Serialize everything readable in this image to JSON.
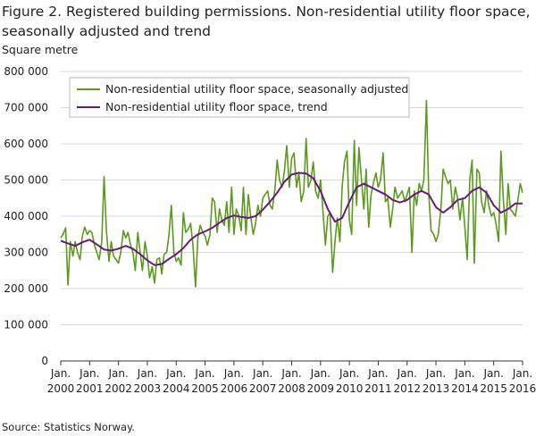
{
  "title": "Figure 2. Registered building permissions. Non-residential utility floor space, seasonally adjusted and trend",
  "source": "Source: Statistics Norway.",
  "colors": {
    "seasonally_adjusted": "#5a9a1c",
    "trend": "#6a1a7a",
    "grid": "#d9d9d9",
    "axis": "#333333"
  },
  "chart_data": {
    "type": "line",
    "ylabel": "Square metre",
    "ylim": [
      0,
      800000
    ],
    "yticks": [
      0,
      100000,
      200000,
      300000,
      400000,
      500000,
      600000,
      700000,
      800000
    ],
    "ytick_labels": [
      "0",
      "100 000",
      "200 000",
      "300 000",
      "400 000",
      "500 000",
      "600 000",
      "700 000",
      "800 000"
    ],
    "xlim": [
      2000,
      2016
    ],
    "xticks": [
      {
        "value": 2000,
        "line1": "Jan.",
        "line2": "2000"
      },
      {
        "value": 2001,
        "line1": "Jan.",
        "line2": "2001"
      },
      {
        "value": 2002,
        "line1": "Jan.",
        "line2": "2002"
      },
      {
        "value": 2003,
        "line1": "Jan.",
        "line2": "2003"
      },
      {
        "value": 2004,
        "line1": "Jan.",
        "line2": "2004"
      },
      {
        "value": 2005,
        "line1": "Jan.",
        "line2": "2005"
      },
      {
        "value": 2006,
        "line1": "Jan.",
        "line2": "2006"
      },
      {
        "value": 2007,
        "line1": "Jan.",
        "line2": "2007"
      },
      {
        "value": 2008,
        "line1": "Jan.",
        "line2": "2008"
      },
      {
        "value": 2009,
        "line1": "Jan.",
        "line2": "2009"
      },
      {
        "value": 2010,
        "line1": "Jan.",
        "line2": "2010"
      },
      {
        "value": 2011,
        "line1": "Jan.",
        "line2": "2011"
      },
      {
        "value": 2012,
        "line1": "Jan.",
        "line2": "2012"
      },
      {
        "value": 2013,
        "line1": "Jan.",
        "line2": "2013"
      },
      {
        "value": 2014,
        "line1": "Jan.",
        "line2": "2014"
      },
      {
        "value": 2015,
        "line1": "Jan.",
        "line2": "2015"
      },
      {
        "value": 2016,
        "line1": "Jan.",
        "line2": "2016"
      }
    ],
    "grid": "horizontal",
    "legend_position": "top-left",
    "series": [
      {
        "name": "Non-residential utility floor space, seasonally adjusted",
        "color": "#5a9a1c",
        "points": [
          [
            2000.0,
            340000
          ],
          [
            2000.08,
            350000
          ],
          [
            2000.17,
            368000
          ],
          [
            2000.25,
            210000
          ],
          [
            2000.33,
            330000
          ],
          [
            2000.42,
            290000
          ],
          [
            2000.5,
            330000
          ],
          [
            2000.58,
            300000
          ],
          [
            2000.67,
            280000
          ],
          [
            2000.75,
            345000
          ],
          [
            2000.83,
            370000
          ],
          [
            2000.92,
            350000
          ],
          [
            2001.0,
            360000
          ],
          [
            2001.08,
            355000
          ],
          [
            2001.17,
            320000
          ],
          [
            2001.25,
            300000
          ],
          [
            2001.33,
            280000
          ],
          [
            2001.42,
            330000
          ],
          [
            2001.5,
            510000
          ],
          [
            2001.58,
            360000
          ],
          [
            2001.67,
            275000
          ],
          [
            2001.75,
            330000
          ],
          [
            2001.83,
            290000
          ],
          [
            2001.92,
            280000
          ],
          [
            2002.0,
            270000
          ],
          [
            2002.08,
            300000
          ],
          [
            2002.17,
            360000
          ],
          [
            2002.25,
            340000
          ],
          [
            2002.33,
            355000
          ],
          [
            2002.42,
            320000
          ],
          [
            2002.5,
            300000
          ],
          [
            2002.58,
            250000
          ],
          [
            2002.67,
            355000
          ],
          [
            2002.75,
            300000
          ],
          [
            2002.83,
            250000
          ],
          [
            2002.92,
            330000
          ],
          [
            2003.0,
            290000
          ],
          [
            2003.08,
            230000
          ],
          [
            2003.17,
            260000
          ],
          [
            2003.25,
            215000
          ],
          [
            2003.33,
            280000
          ],
          [
            2003.42,
            285000
          ],
          [
            2003.5,
            240000
          ],
          [
            2003.58,
            295000
          ],
          [
            2003.67,
            300000
          ],
          [
            2003.75,
            350000
          ],
          [
            2003.83,
            430000
          ],
          [
            2003.92,
            300000
          ],
          [
            2004.0,
            275000
          ],
          [
            2004.08,
            285000
          ],
          [
            2004.17,
            265000
          ],
          [
            2004.25,
            410000
          ],
          [
            2004.33,
            355000
          ],
          [
            2004.42,
            365000
          ],
          [
            2004.5,
            380000
          ],
          [
            2004.58,
            320000
          ],
          [
            2004.67,
            205000
          ],
          [
            2004.75,
            340000
          ],
          [
            2004.83,
            375000
          ],
          [
            2004.92,
            355000
          ],
          [
            2005.0,
            345000
          ],
          [
            2005.08,
            320000
          ],
          [
            2005.17,
            350000
          ],
          [
            2005.25,
            450000
          ],
          [
            2005.33,
            440000
          ],
          [
            2005.42,
            355000
          ],
          [
            2005.5,
            420000
          ],
          [
            2005.58,
            390000
          ],
          [
            2005.67,
            375000
          ],
          [
            2005.75,
            440000
          ],
          [
            2005.83,
            355000
          ],
          [
            2005.92,
            480000
          ],
          [
            2006.0,
            350000
          ],
          [
            2006.08,
            420000
          ],
          [
            2006.17,
            400000
          ],
          [
            2006.25,
            360000
          ],
          [
            2006.33,
            480000
          ],
          [
            2006.42,
            350000
          ],
          [
            2006.5,
            460000
          ],
          [
            2006.58,
            400000
          ],
          [
            2006.67,
            350000
          ],
          [
            2006.75,
            380000
          ],
          [
            2006.83,
            430000
          ],
          [
            2006.92,
            400000
          ],
          [
            2007.0,
            450000
          ],
          [
            2007.08,
            460000
          ],
          [
            2007.17,
            470000
          ],
          [
            2007.25,
            430000
          ],
          [
            2007.33,
            420000
          ],
          [
            2007.42,
            475000
          ],
          [
            2007.5,
            555000
          ],
          [
            2007.58,
            500000
          ],
          [
            2007.67,
            480000
          ],
          [
            2007.75,
            525000
          ],
          [
            2007.83,
            595000
          ],
          [
            2007.92,
            480000
          ],
          [
            2008.0,
            560000
          ],
          [
            2008.08,
            575000
          ],
          [
            2008.17,
            480000
          ],
          [
            2008.25,
            520000
          ],
          [
            2008.33,
            440000
          ],
          [
            2008.42,
            470000
          ],
          [
            2008.5,
            615000
          ],
          [
            2008.58,
            480000
          ],
          [
            2008.67,
            500000
          ],
          [
            2008.75,
            550000
          ],
          [
            2008.83,
            470000
          ],
          [
            2008.92,
            450000
          ],
          [
            2009.0,
            500000
          ],
          [
            2009.08,
            420000
          ],
          [
            2009.17,
            320000
          ],
          [
            2009.25,
            400000
          ],
          [
            2009.33,
            410000
          ],
          [
            2009.42,
            245000
          ],
          [
            2009.5,
            330000
          ],
          [
            2009.58,
            395000
          ],
          [
            2009.67,
            330000
          ],
          [
            2009.75,
            480000
          ],
          [
            2009.83,
            550000
          ],
          [
            2009.92,
            580000
          ],
          [
            2010.0,
            390000
          ],
          [
            2010.08,
            350000
          ],
          [
            2010.17,
            610000
          ],
          [
            2010.25,
            430000
          ],
          [
            2010.33,
            590000
          ],
          [
            2010.42,
            500000
          ],
          [
            2010.5,
            420000
          ],
          [
            2010.58,
            530000
          ],
          [
            2010.67,
            370000
          ],
          [
            2010.75,
            460000
          ],
          [
            2010.83,
            490000
          ],
          [
            2010.92,
            520000
          ],
          [
            2011.0,
            480000
          ],
          [
            2011.08,
            500000
          ],
          [
            2011.17,
            575000
          ],
          [
            2011.25,
            440000
          ],
          [
            2011.33,
            450000
          ],
          [
            2011.42,
            370000
          ],
          [
            2011.5,
            420000
          ],
          [
            2011.58,
            480000
          ],
          [
            2011.67,
            450000
          ],
          [
            2011.75,
            460000
          ],
          [
            2011.83,
            470000
          ],
          [
            2011.92,
            440000
          ],
          [
            2012.0,
            460000
          ],
          [
            2012.08,
            480000
          ],
          [
            2012.17,
            300000
          ],
          [
            2012.25,
            470000
          ],
          [
            2012.33,
            430000
          ],
          [
            2012.42,
            490000
          ],
          [
            2012.5,
            470000
          ],
          [
            2012.58,
            500000
          ],
          [
            2012.67,
            720000
          ],
          [
            2012.75,
            460000
          ],
          [
            2012.83,
            360000
          ],
          [
            2012.92,
            350000
          ],
          [
            2013.0,
            330000
          ],
          [
            2013.08,
            350000
          ],
          [
            2013.17,
            420000
          ],
          [
            2013.25,
            530000
          ],
          [
            2013.33,
            510000
          ],
          [
            2013.42,
            490000
          ],
          [
            2013.5,
            500000
          ],
          [
            2013.58,
            420000
          ],
          [
            2013.67,
            480000
          ],
          [
            2013.75,
            450000
          ],
          [
            2013.83,
            390000
          ],
          [
            2013.92,
            450000
          ],
          [
            2014.0,
            370000
          ],
          [
            2014.08,
            280000
          ],
          [
            2014.17,
            500000
          ],
          [
            2014.25,
            555000
          ],
          [
            2014.33,
            270000
          ],
          [
            2014.42,
            530000
          ],
          [
            2014.5,
            520000
          ],
          [
            2014.58,
            440000
          ],
          [
            2014.67,
            410000
          ],
          [
            2014.75,
            470000
          ],
          [
            2014.83,
            430000
          ],
          [
            2014.92,
            400000
          ],
          [
            2015.0,
            410000
          ],
          [
            2015.08,
            380000
          ],
          [
            2015.17,
            330000
          ],
          [
            2015.25,
            580000
          ],
          [
            2015.33,
            450000
          ],
          [
            2015.42,
            350000
          ],
          [
            2015.5,
            490000
          ],
          [
            2015.58,
            420000
          ],
          [
            2015.67,
            410000
          ],
          [
            2015.75,
            400000
          ],
          [
            2015.83,
            440000
          ],
          [
            2015.92,
            490000
          ],
          [
            2016.0,
            465000
          ]
        ]
      },
      {
        "name": "Non-residential utility floor space, trend",
        "color": "#6a1a7a",
        "points": [
          [
            2000.0,
            332000
          ],
          [
            2000.25,
            325000
          ],
          [
            2000.5,
            318000
          ],
          [
            2000.75,
            328000
          ],
          [
            2001.0,
            335000
          ],
          [
            2001.25,
            322000
          ],
          [
            2001.5,
            308000
          ],
          [
            2001.75,
            305000
          ],
          [
            2002.0,
            310000
          ],
          [
            2002.25,
            318000
          ],
          [
            2002.5,
            310000
          ],
          [
            2002.75,
            295000
          ],
          [
            2003.0,
            278000
          ],
          [
            2003.25,
            265000
          ],
          [
            2003.5,
            268000
          ],
          [
            2003.75,
            282000
          ],
          [
            2004.0,
            295000
          ],
          [
            2004.25,
            312000
          ],
          [
            2004.5,
            335000
          ],
          [
            2004.75,
            350000
          ],
          [
            2005.0,
            358000
          ],
          [
            2005.25,
            368000
          ],
          [
            2005.5,
            382000
          ],
          [
            2005.75,
            395000
          ],
          [
            2006.0,
            402000
          ],
          [
            2006.25,
            398000
          ],
          [
            2006.5,
            395000
          ],
          [
            2006.75,
            400000
          ],
          [
            2007.0,
            418000
          ],
          [
            2007.25,
            440000
          ],
          [
            2007.5,
            465000
          ],
          [
            2007.75,
            495000
          ],
          [
            2008.0,
            515000
          ],
          [
            2008.25,
            520000
          ],
          [
            2008.5,
            518000
          ],
          [
            2008.75,
            505000
          ],
          [
            2009.0,
            470000
          ],
          [
            2009.25,
            420000
          ],
          [
            2009.5,
            385000
          ],
          [
            2009.75,
            395000
          ],
          [
            2010.0,
            440000
          ],
          [
            2010.25,
            480000
          ],
          [
            2010.5,
            490000
          ],
          [
            2010.75,
            480000
          ],
          [
            2011.0,
            470000
          ],
          [
            2011.25,
            460000
          ],
          [
            2011.5,
            445000
          ],
          [
            2011.75,
            438000
          ],
          [
            2012.0,
            445000
          ],
          [
            2012.25,
            460000
          ],
          [
            2012.5,
            470000
          ],
          [
            2012.75,
            460000
          ],
          [
            2013.0,
            425000
          ],
          [
            2013.25,
            410000
          ],
          [
            2013.5,
            425000
          ],
          [
            2013.75,
            445000
          ],
          [
            2014.0,
            450000
          ],
          [
            2014.25,
            470000
          ],
          [
            2014.5,
            480000
          ],
          [
            2014.75,
            465000
          ],
          [
            2015.0,
            430000
          ],
          [
            2015.25,
            410000
          ],
          [
            2015.5,
            420000
          ],
          [
            2015.75,
            435000
          ],
          [
            2016.0,
            435000
          ]
        ]
      }
    ]
  }
}
